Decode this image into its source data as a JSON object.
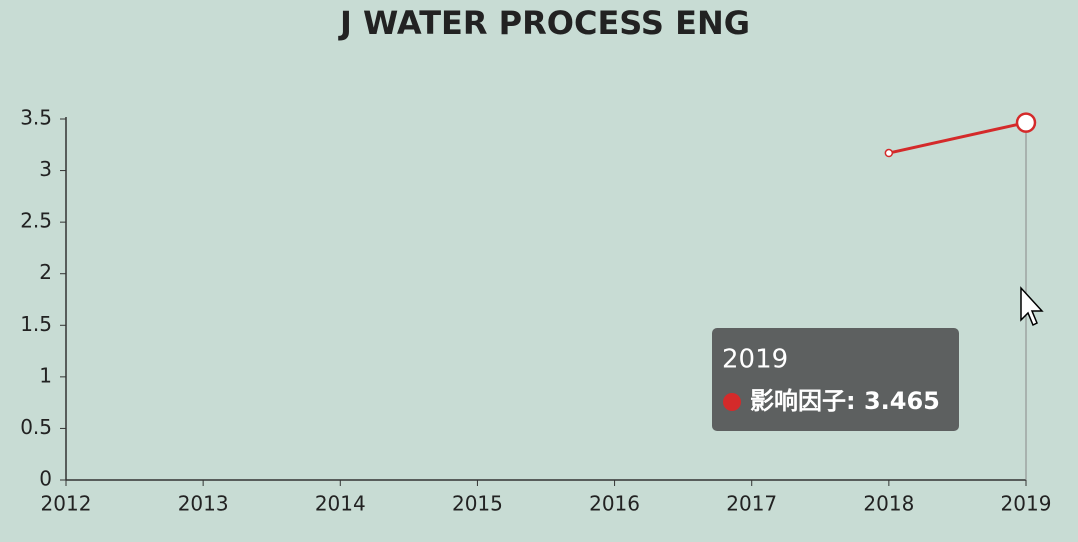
{
  "chart_data": {
    "type": "line",
    "title": "J WATER PROCESS ENG",
    "categories": [
      "2012",
      "2013",
      "2014",
      "2015",
      "2016",
      "2017",
      "2018",
      "2019"
    ],
    "series": [
      {
        "name": "影响因子",
        "color": "#d42a2a",
        "values": [
          null,
          null,
          null,
          null,
          null,
          null,
          3.17,
          3.465
        ]
      }
    ],
    "ylim": [
      0,
      3.5
    ],
    "yticks": [
      0,
      0.5,
      1,
      1.5,
      2,
      2.5,
      3,
      3.5
    ],
    "grid": false,
    "tooltip": {
      "title": "2019",
      "text": "影响因子: 3.465"
    }
  }
}
